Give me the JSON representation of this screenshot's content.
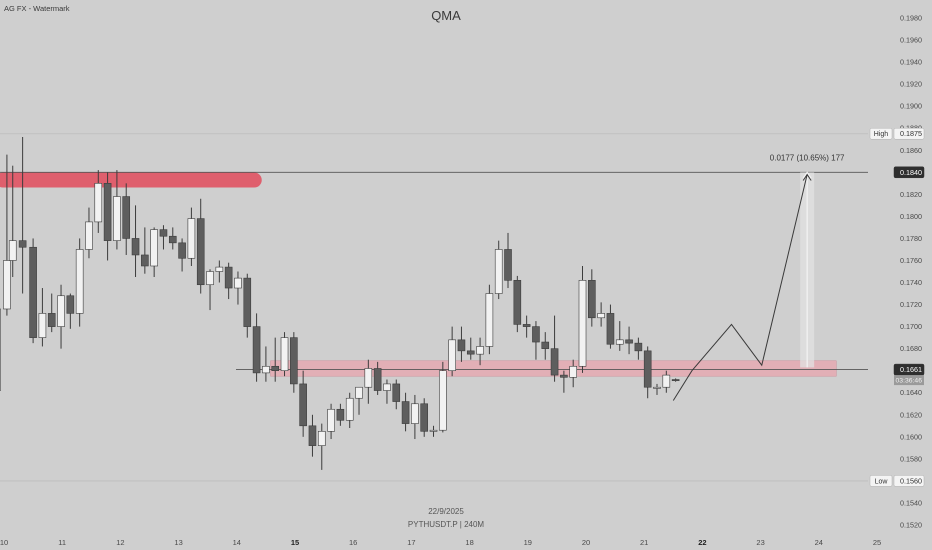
{
  "header": {
    "watermark_label": "AG FX - Watermark",
    "chart_title": "QMA"
  },
  "footer": {
    "date_label": "22/9/2025",
    "symbol_label": "PYTHUSDT.P | 240M"
  },
  "colors": {
    "background": "#cfcfcf",
    "bull_body": "#f2f2f2",
    "bear_body": "#5e5e5e",
    "candle_outline": "#3c3c3c",
    "wick": "#3c3c3c",
    "supply_zone": "#e05a68",
    "demand_zone": "#e7a8b1",
    "measure_box": "#e2e2e2",
    "label_dark": "#2e2e2e"
  },
  "chart_data": {
    "type": "candlestick",
    "title": "QMA",
    "symbol": "PYTHUSDT.P | 240M",
    "x_ticks": [
      {
        "day": 10,
        "label": "10",
        "bold": false
      },
      {
        "day": 11,
        "label": "11",
        "bold": false
      },
      {
        "day": 12,
        "label": "12",
        "bold": false
      },
      {
        "day": 13,
        "label": "13",
        "bold": false
      },
      {
        "day": 14,
        "label": "14",
        "bold": false
      },
      {
        "day": 15,
        "label": "15",
        "bold": true
      },
      {
        "day": 16,
        "label": "16",
        "bold": false
      },
      {
        "day": 17,
        "label": "17",
        "bold": false
      },
      {
        "day": 18,
        "label": "18",
        "bold": false
      },
      {
        "day": 19,
        "label": "19",
        "bold": false
      },
      {
        "day": 20,
        "label": "20",
        "bold": false
      },
      {
        "day": 21,
        "label": "21",
        "bold": false
      },
      {
        "day": 22,
        "label": "22",
        "bold": true
      },
      {
        "day": 23,
        "label": "23",
        "bold": false
      },
      {
        "day": 24,
        "label": "24",
        "bold": false
      },
      {
        "day": 25,
        "label": "25",
        "bold": false
      }
    ],
    "y_range": [
      0.152,
      0.198
    ],
    "y_ticks": [
      "0.1520",
      "0.1540",
      "0.1560",
      "0.1580",
      "0.1600",
      "0.1620",
      "0.1640",
      "0.1660",
      "0.1680",
      "0.1700",
      "0.1720",
      "0.1740",
      "0.1760",
      "0.1780",
      "0.1800",
      "0.1820",
      "0.1840",
      "0.1860",
      "0.1880",
      "0.1900",
      "0.1920",
      "0.1940",
      "0.1960",
      "0.1980"
    ],
    "candles": [
      {
        "t": 9.88,
        "o": 0.1642,
        "h": 0.172,
        "l": 0.1636,
        "c": 0.1716
      },
      {
        "t": 10.05,
        "o": 0.1716,
        "h": 0.1856,
        "l": 0.171,
        "c": 0.176
      },
      {
        "t": 10.15,
        "o": 0.176,
        "h": 0.1846,
        "l": 0.1745,
        "c": 0.1778
      },
      {
        "t": 10.32,
        "o": 0.1778,
        "h": 0.1872,
        "l": 0.173,
        "c": 0.1772
      },
      {
        "t": 10.5,
        "o": 0.1772,
        "h": 0.178,
        "l": 0.1685,
        "c": 0.169
      },
      {
        "t": 10.66,
        "o": 0.169,
        "h": 0.1735,
        "l": 0.1682,
        "c": 0.1712
      },
      {
        "t": 10.82,
        "o": 0.1712,
        "h": 0.173,
        "l": 0.1695,
        "c": 0.17
      },
      {
        "t": 10.98,
        "o": 0.17,
        "h": 0.1738,
        "l": 0.168,
        "c": 0.1728
      },
      {
        "t": 11.14,
        "o": 0.1728,
        "h": 0.173,
        "l": 0.1698,
        "c": 0.1712
      },
      {
        "t": 11.3,
        "o": 0.1712,
        "h": 0.178,
        "l": 0.17,
        "c": 0.177
      },
      {
        "t": 11.46,
        "o": 0.177,
        "h": 0.1808,
        "l": 0.1762,
        "c": 0.1795
      },
      {
        "t": 11.62,
        "o": 0.1795,
        "h": 0.1842,
        "l": 0.1785,
        "c": 0.183
      },
      {
        "t": 11.78,
        "o": 0.183,
        "h": 0.184,
        "l": 0.176,
        "c": 0.1778
      },
      {
        "t": 11.94,
        "o": 0.1778,
        "h": 0.1842,
        "l": 0.177,
        "c": 0.1818
      },
      {
        "t": 12.1,
        "o": 0.1818,
        "h": 0.183,
        "l": 0.1765,
        "c": 0.178
      },
      {
        "t": 12.26,
        "o": 0.178,
        "h": 0.181,
        "l": 0.1745,
        "c": 0.1765
      },
      {
        "t": 12.42,
        "o": 0.1765,
        "h": 0.179,
        "l": 0.1748,
        "c": 0.1755
      },
      {
        "t": 12.58,
        "o": 0.1755,
        "h": 0.179,
        "l": 0.1745,
        "c": 0.1788
      },
      {
        "t": 12.74,
        "o": 0.1788,
        "h": 0.1792,
        "l": 0.177,
        "c": 0.1782
      },
      {
        "t": 12.9,
        "o": 0.1782,
        "h": 0.179,
        "l": 0.177,
        "c": 0.1776
      },
      {
        "t": 13.06,
        "o": 0.1776,
        "h": 0.178,
        "l": 0.175,
        "c": 0.1762
      },
      {
        "t": 13.22,
        "o": 0.1762,
        "h": 0.1808,
        "l": 0.1755,
        "c": 0.1798
      },
      {
        "t": 13.38,
        "o": 0.1798,
        "h": 0.1816,
        "l": 0.173,
        "c": 0.1738
      },
      {
        "t": 13.54,
        "o": 0.1738,
        "h": 0.1752,
        "l": 0.1715,
        "c": 0.175
      },
      {
        "t": 13.7,
        "o": 0.175,
        "h": 0.176,
        "l": 0.174,
        "c": 0.1754
      },
      {
        "t": 13.86,
        "o": 0.1754,
        "h": 0.1758,
        "l": 0.1725,
        "c": 0.1735
      },
      {
        "t": 14.02,
        "o": 0.1735,
        "h": 0.175,
        "l": 0.172,
        "c": 0.1744
      },
      {
        "t": 14.18,
        "o": 0.1744,
        "h": 0.1748,
        "l": 0.169,
        "c": 0.17
      },
      {
        "t": 14.34,
        "o": 0.17,
        "h": 0.1712,
        "l": 0.165,
        "c": 0.1658
      },
      {
        "t": 14.5,
        "o": 0.1658,
        "h": 0.1682,
        "l": 0.165,
        "c": 0.1664
      },
      {
        "t": 14.66,
        "o": 0.1664,
        "h": 0.169,
        "l": 0.165,
        "c": 0.166
      },
      {
        "t": 14.82,
        "o": 0.166,
        "h": 0.1695,
        "l": 0.1655,
        "c": 0.169
      },
      {
        "t": 14.98,
        "o": 0.169,
        "h": 0.1695,
        "l": 0.164,
        "c": 0.1648
      },
      {
        "t": 15.14,
        "o": 0.1648,
        "h": 0.166,
        "l": 0.16,
        "c": 0.161
      },
      {
        "t": 15.3,
        "o": 0.161,
        "h": 0.162,
        "l": 0.1582,
        "c": 0.1592
      },
      {
        "t": 15.46,
        "o": 0.1592,
        "h": 0.1612,
        "l": 0.157,
        "c": 0.1605
      },
      {
        "t": 15.62,
        "o": 0.1605,
        "h": 0.163,
        "l": 0.1598,
        "c": 0.1625
      },
      {
        "t": 15.78,
        "o": 0.1625,
        "h": 0.163,
        "l": 0.161,
        "c": 0.1615
      },
      {
        "t": 15.94,
        "o": 0.1615,
        "h": 0.164,
        "l": 0.1608,
        "c": 0.1635
      },
      {
        "t": 16.1,
        "o": 0.1635,
        "h": 0.1645,
        "l": 0.162,
        "c": 0.1645
      },
      {
        "t": 16.26,
        "o": 0.1645,
        "h": 0.167,
        "l": 0.163,
        "c": 0.1662
      },
      {
        "t": 16.42,
        "o": 0.1662,
        "h": 0.1668,
        "l": 0.1638,
        "c": 0.1642
      },
      {
        "t": 16.58,
        "o": 0.1642,
        "h": 0.1652,
        "l": 0.163,
        "c": 0.1648
      },
      {
        "t": 16.74,
        "o": 0.1648,
        "h": 0.1652,
        "l": 0.1625,
        "c": 0.1632
      },
      {
        "t": 16.9,
        "o": 0.1632,
        "h": 0.164,
        "l": 0.1605,
        "c": 0.1612
      },
      {
        "t": 17.06,
        "o": 0.1612,
        "h": 0.1638,
        "l": 0.1598,
        "c": 0.163
      },
      {
        "t": 17.22,
        "o": 0.163,
        "h": 0.1635,
        "l": 0.16,
        "c": 0.1605
      },
      {
        "t": 17.38,
        "o": 0.1605,
        "h": 0.161,
        "l": 0.16,
        "c": 0.1606
      },
      {
        "t": 17.54,
        "o": 0.1606,
        "h": 0.1668,
        "l": 0.1604,
        "c": 0.166
      },
      {
        "t": 17.7,
        "o": 0.166,
        "h": 0.17,
        "l": 0.1655,
        "c": 0.1688
      },
      {
        "t": 17.86,
        "o": 0.1688,
        "h": 0.17,
        "l": 0.1668,
        "c": 0.1678
      },
      {
        "t": 18.02,
        "o": 0.1678,
        "h": 0.169,
        "l": 0.167,
        "c": 0.1675
      },
      {
        "t": 18.18,
        "o": 0.1675,
        "h": 0.169,
        "l": 0.1665,
        "c": 0.1682
      },
      {
        "t": 18.34,
        "o": 0.1682,
        "h": 0.1738,
        "l": 0.1675,
        "c": 0.173
      },
      {
        "t": 18.5,
        "o": 0.173,
        "h": 0.1778,
        "l": 0.1725,
        "c": 0.177
      },
      {
        "t": 18.66,
        "o": 0.177,
        "h": 0.1785,
        "l": 0.1735,
        "c": 0.1742
      },
      {
        "t": 18.82,
        "o": 0.1742,
        "h": 0.1746,
        "l": 0.1695,
        "c": 0.1702
      },
      {
        "t": 18.98,
        "o": 0.1702,
        "h": 0.171,
        "l": 0.169,
        "c": 0.17
      },
      {
        "t": 19.14,
        "o": 0.17,
        "h": 0.1705,
        "l": 0.167,
        "c": 0.1686
      },
      {
        "t": 19.3,
        "o": 0.1686,
        "h": 0.1695,
        "l": 0.167,
        "c": 0.168
      },
      {
        "t": 19.46,
        "o": 0.168,
        "h": 0.171,
        "l": 0.165,
        "c": 0.1656
      },
      {
        "t": 19.62,
        "o": 0.1656,
        "h": 0.166,
        "l": 0.164,
        "c": 0.1654
      },
      {
        "t": 19.78,
        "o": 0.1654,
        "h": 0.167,
        "l": 0.1645,
        "c": 0.1664
      },
      {
        "t": 19.94,
        "o": 0.1664,
        "h": 0.1755,
        "l": 0.1658,
        "c": 0.1742
      },
      {
        "t": 20.1,
        "o": 0.1742,
        "h": 0.1752,
        "l": 0.17,
        "c": 0.1708
      },
      {
        "t": 20.26,
        "o": 0.1708,
        "h": 0.1722,
        "l": 0.17,
        "c": 0.1712
      },
      {
        "t": 20.42,
        "o": 0.1712,
        "h": 0.172,
        "l": 0.168,
        "c": 0.1684
      },
      {
        "t": 20.58,
        "o": 0.1684,
        "h": 0.1705,
        "l": 0.1678,
        "c": 0.1688
      },
      {
        "t": 20.74,
        "o": 0.1688,
        "h": 0.17,
        "l": 0.1675,
        "c": 0.1685
      },
      {
        "t": 20.9,
        "o": 0.1685,
        "h": 0.169,
        "l": 0.167,
        "c": 0.1678
      },
      {
        "t": 21.06,
        "o": 0.1678,
        "h": 0.1682,
        "l": 0.1635,
        "c": 0.1645
      },
      {
        "t": 21.22,
        "o": 0.1645,
        "h": 0.1648,
        "l": 0.1638,
        "c": 0.1645
      },
      {
        "t": 21.38,
        "o": 0.1645,
        "h": 0.166,
        "l": 0.164,
        "c": 0.1656
      },
      {
        "t": 21.54,
        "o": 0.1652,
        "h": 0.1653,
        "l": 0.165,
        "c": 0.1651
      }
    ],
    "levels": [
      {
        "price": 0.1875,
        "tag": "High",
        "value_label": "0.1875",
        "style": "light"
      },
      {
        "price": 0.184,
        "tag": "",
        "value_label": "0.1840",
        "style": "dark"
      },
      {
        "price": 0.1661,
        "tag": "",
        "value_label": "0.1661",
        "sub_label": "03:36:46",
        "style": "dark"
      },
      {
        "price": 0.156,
        "tag": "Low",
        "value_label": "0.1560",
        "style": "light"
      }
    ],
    "supply_zone": {
      "t_start": 9.98,
      "t_end": 14.3,
      "price": 0.1833
    },
    "demand_zone": {
      "t_start": 14.58,
      "t_end": 24.3,
      "top": 0.1669,
      "bottom": 0.1655
    },
    "projection_path": [
      {
        "t": 21.5,
        "p": 0.1633
      },
      {
        "t": 21.82,
        "p": 0.166
      },
      {
        "t": 22.5,
        "p": 0.1702
      },
      {
        "t": 23.02,
        "p": 0.1665
      },
      {
        "t": 23.8,
        "p": 0.1838
      }
    ],
    "measure": {
      "t": 23.8,
      "from": 0.1663,
      "to": 0.184,
      "label": "0.0177 (10.65%) 177"
    }
  }
}
